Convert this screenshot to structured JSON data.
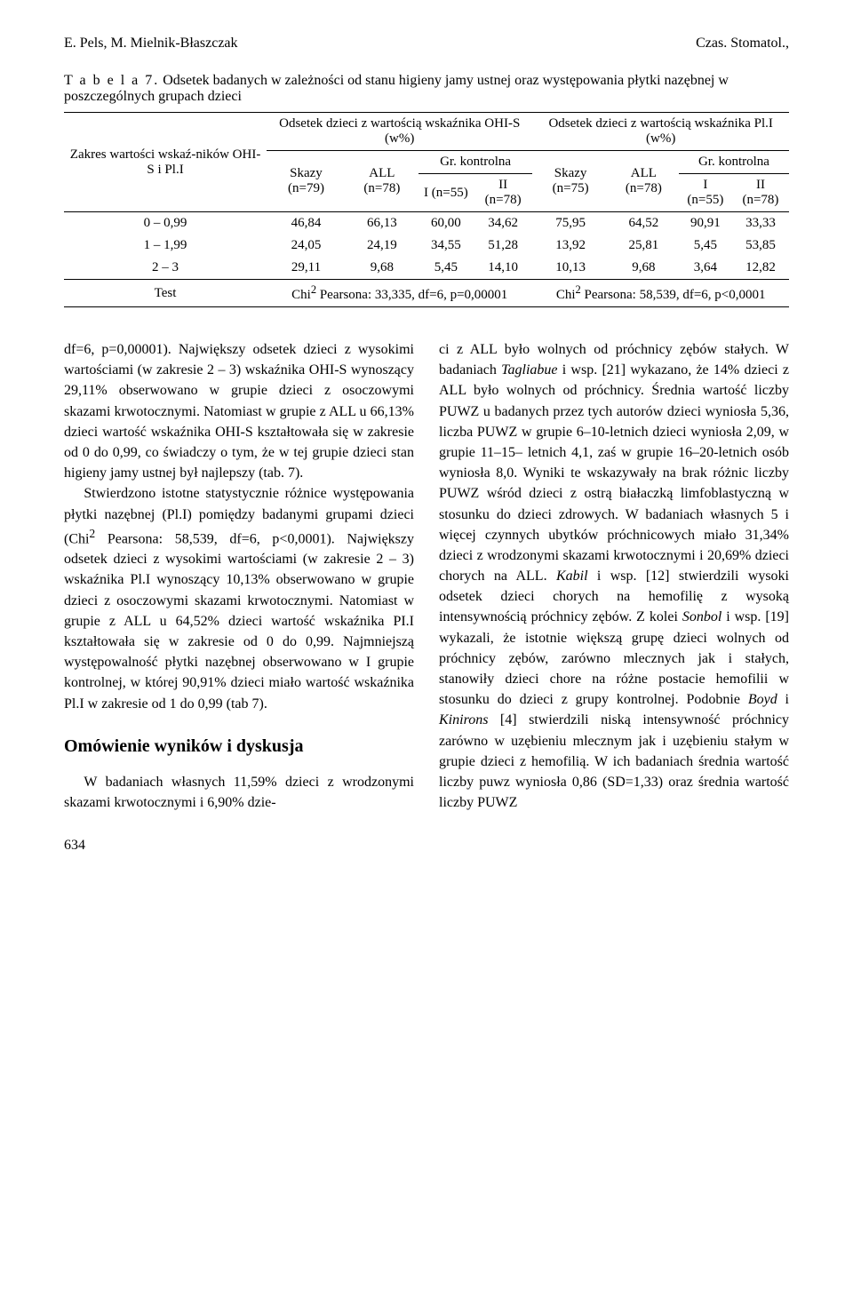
{
  "page": {
    "running_head_left": "E. Pels, M. Mielnik-Błaszczak",
    "running_head_right": "Czas. Stomatol.,",
    "page_number": "634"
  },
  "table": {
    "caption_label": "T a b e l a   7.",
    "caption_text": "Odsetek badanych w zależności od stanu higieny jamy ustnej oraz występowania płytki nazębnej w poszczególnych grupach dzieci",
    "left_header": "Zakres wartości wskaź-ników OHI-S i Pl.I",
    "group_a_top": "Odsetek dzieci z wartością wskaźnika OHI-S (w%)",
    "group_b_top": "Odsetek dzieci z wartością wskaźnika Pl.I (w%)",
    "skazy_a": "Skazy (n=79)",
    "all_a": "ALL (n=78)",
    "skazy_b": "Skazy (n=75)",
    "all_b": "ALL (n=78)",
    "gr_kontrolna": "Gr. kontrolna",
    "i55": "I (n=55)",
    "ii78": "II (n=78)",
    "row_labels": [
      "0 – 0,99",
      "1 – 1,99",
      "2 – 3",
      "Test"
    ],
    "rows": [
      [
        "46,84",
        "66,13",
        "60,00",
        "34,62",
        "75,95",
        "64,52",
        "90,91",
        "33,33"
      ],
      [
        "24,05",
        "24,19",
        "34,55",
        "51,28",
        "13,92",
        "25,81",
        "5,45",
        "53,85"
      ],
      [
        "29,11",
        "9,68",
        "5,45",
        "14,10",
        "10,13",
        "9,68",
        "3,64",
        "12,82"
      ]
    ],
    "test_a_prefix": "Chi",
    "test_a_sup": "2",
    "test_a_rest": " Pearsona: 33,335, df=6, p=0,00001",
    "test_b_prefix": "Chi",
    "test_b_sup": "2",
    "test_b_rest": " Pearsona: 58,539, df=6, p<0,0001",
    "style": {
      "type": "table",
      "border_color": "#000000",
      "background_color": "#ffffff",
      "font_size_pt": 11,
      "line_width": 1
    }
  },
  "body": {
    "left": {
      "p1_a": "df=6, p=0,00001). Największy odsetek dzieci z wysokimi wartościami (w zakresie 2 – 3) wskaźnika OHI-S wynoszący 29,11% obserwowano w grupie dzieci z osoczowymi skazami krwotocznymi. Natomiast w grupie z ALL u 66,13% dzieci wartość wskaźnika OHI-S kształtowała się w zakresie od 0 do 0,99, co świadczy o tym, że w tej grupie dzieci stan higieny jamy ustnej był najlepszy (tab. 7).",
      "p2_a": "Stwierdzono istotne statystycznie różnice występowania płytki nazębnej (Pl.I) pomiędzy badanymi grupami dzieci (Chi",
      "p2_sup": "2",
      "p2_b": " Pearsona: 58,539, df=6, p<0,0001). Największy odsetek dzieci z wysokimi wartościami (w zakresie 2 – 3) wskaźnika Pl.I wynoszący 10,13% obserwowano w grupie dzieci z osoczowymi skazami krwotocznymi. Natomiast w grupie z ALL u 64,52% dzieci wartość wskaźnika PI.I kształtowała się w zakresie od 0 do 0,99. Najmniejszą występowalność płytki nazębnej obserwowano w I grupie kontrolnej, w której 90,91% dzieci miało wartość wskaźnika Pl.I w zakresie od 1 do 0,99 (tab 7).",
      "h2": "Omówienie wyników i dyskusja",
      "p3": "W badaniach własnych 11,59% dzieci z wrodzonymi skazami krwotocznymi i 6,90% dzie-"
    },
    "right": {
      "p1_a": "ci z ALL było wolnych od próchnicy zębów stałych. W badaniach ",
      "p1_it1": "Tagliabue",
      "p1_b": " i wsp. [21] wykazano, że 14% dzieci z ALL było wolnych od próchnicy. Średnia wartość liczby PUWZ u badanych przez tych autorów dzieci wyniosła 5,36, liczba PUWZ w grupie 6–10-letnich dzieci wyniosła 2,09, w grupie 11–15– letnich 4,1, zaś w grupie 16–20-letnich osób wyniosła 8,0. Wyniki te wskazywały na brak różnic liczby PUWZ wśród dzieci z ostrą białaczką limfoblastyczną w stosunku do dzieci zdrowych. W badaniach własnych 5 i więcej czynnych ubytków próchnicowych miało 31,34% dzieci z wrodzonymi skazami krwotocznymi i 20,69% dzieci chorych na ALL. ",
      "p1_it2": "Kabil",
      "p1_c": " i wsp. [12] stwierdzili wysoki odsetek dzieci chorych na hemofilię z wysoką intensywnością próchnicy zębów. Z kolei ",
      "p1_it3": "Sonbol",
      "p1_d": " i wsp. [19] wykazali, że istotnie większą grupę dzieci wolnych od próchnicy zębów, zarówno mlecznych jak i stałych, stanowiły dzieci chore na różne postacie hemofilii w stosunku do dzieci z grupy kontrolnej. Podobnie ",
      "p1_it4": "Boyd",
      "p1_e": " i ",
      "p1_it5": "Kinirons",
      "p1_f": " [4] stwierdzili niską intensywność próchnicy zarówno w uzębieniu mlecznym jak i uzębieniu stałym w grupie dzieci z hemofilią. W ich badaniach średnia wartość liczby puwz wyniosła 0,86 (SD=1,33) oraz średnia wartość liczby PUWZ"
    }
  }
}
